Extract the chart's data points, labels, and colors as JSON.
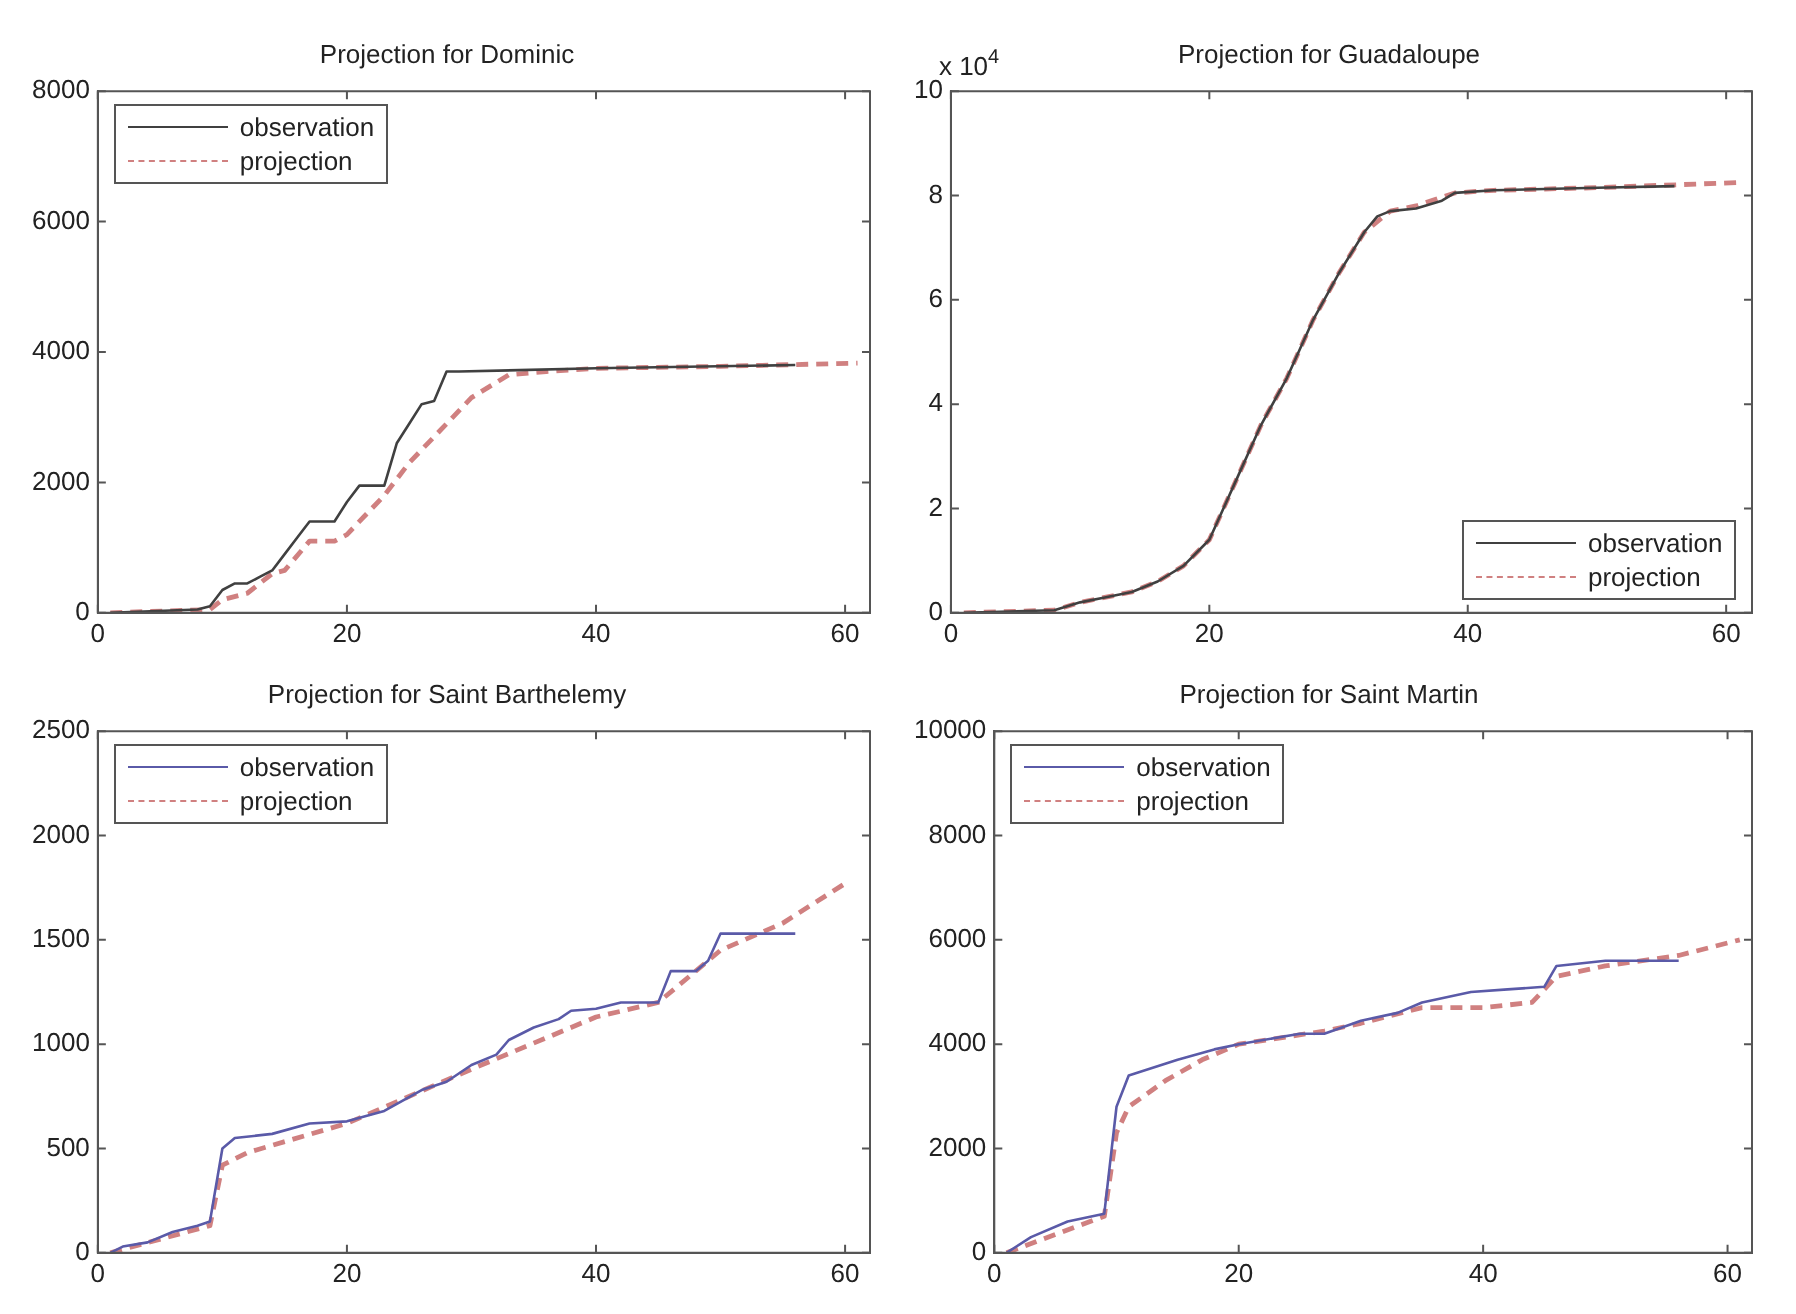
{
  "chart_data": [
    {
      "type": "line",
      "title": "Projection for Dominic",
      "xlim": [
        0,
        62
      ],
      "xticks": [
        0,
        20,
        40,
        60
      ],
      "ylim": [
        0,
        8000
      ],
      "yticks": [
        0,
        2000,
        4000,
        6000,
        8000
      ],
      "grid": false,
      "legend": "top left",
      "marker": "none",
      "series": [
        {
          "name": "observation",
          "color": "#404040",
          "line_style": "solid",
          "x": [
            1,
            8,
            9,
            10,
            11,
            12,
            13,
            14,
            15,
            16,
            17,
            18,
            19,
            20,
            21,
            22,
            23,
            24,
            25,
            26,
            27,
            28,
            29,
            40,
            56
          ],
          "values": [
            0,
            50,
            100,
            350,
            450,
            450,
            550,
            650,
            900,
            1150,
            1400,
            1400,
            1400,
            1700,
            1950,
            1950,
            1950,
            2600,
            2900,
            3200,
            3250,
            3700,
            3700,
            3750,
            3800
          ]
        },
        {
          "name": "projection",
          "color": "#d08080",
          "line_style": "dashed",
          "x": [
            1,
            9,
            10,
            12,
            14,
            15,
            17,
            19,
            20,
            22,
            23,
            25,
            28,
            30,
            33,
            36,
            40,
            50,
            61
          ],
          "values": [
            0,
            50,
            200,
            300,
            600,
            650,
            1100,
            1100,
            1200,
            1600,
            1800,
            2300,
            2900,
            3300,
            3650,
            3700,
            3750,
            3780,
            3830
          ]
        }
      ]
    },
    {
      "type": "line",
      "title": "Projection for Guadaloupe",
      "annotations": [
        "x 10$^{4}$"
      ],
      "xlim": [
        0,
        62
      ],
      "xticks": [
        0,
        20,
        40,
        60
      ],
      "ylim": [
        0,
        10
      ],
      "yticks": [
        0,
        2,
        4,
        6,
        8,
        10
      ],
      "grid": false,
      "legend": "bottom right",
      "marker": "none",
      "series": [
        {
          "name": "observation",
          "color": "#404040",
          "line_style": "solid",
          "x": [
            1,
            8,
            10,
            12,
            14,
            16,
            18,
            20,
            22,
            24,
            26,
            28,
            30,
            32,
            33,
            34,
            36,
            38,
            39,
            42,
            50,
            56
          ],
          "values": [
            0,
            0.05,
            0.2,
            0.3,
            0.4,
            0.6,
            0.9,
            1.4,
            2.5,
            3.6,
            4.5,
            5.6,
            6.5,
            7.3,
            7.6,
            7.7,
            7.75,
            7.9,
            8.05,
            8.1,
            8.15,
            8.18
          ]
        },
        {
          "name": "projection",
          "color": "#d08080",
          "line_style": "dashed",
          "x": [
            1,
            8,
            10,
            12,
            14,
            16,
            18,
            20,
            22,
            24,
            26,
            28,
            30,
            32,
            34,
            36,
            39,
            42,
            50,
            61
          ],
          "values": [
            0,
            0.05,
            0.2,
            0.3,
            0.4,
            0.6,
            0.9,
            1.4,
            2.5,
            3.6,
            4.5,
            5.6,
            6.5,
            7.3,
            7.7,
            7.8,
            8.05,
            8.1,
            8.15,
            8.25
          ]
        }
      ]
    },
    {
      "type": "line",
      "title": "Projection for Saint Barthelemy",
      "xlim": [
        0,
        62
      ],
      "xticks": [
        0,
        20,
        40,
        60
      ],
      "ylim": [
        0,
        2500
      ],
      "yticks": [
        0,
        500,
        1000,
        1500,
        2000,
        2500
      ],
      "grid": false,
      "legend": "top left",
      "marker": "none",
      "series": [
        {
          "name": "observation",
          "color": "#5a5aa8",
          "line_style": "solid",
          "x": [
            1,
            2,
            4,
            6,
            8,
            9,
            10,
            11,
            14,
            17,
            20,
            23,
            26,
            28,
            30,
            32,
            33,
            35,
            37,
            38,
            40,
            42,
            45,
            46,
            48,
            49,
            50,
            56
          ],
          "values": [
            0,
            30,
            50,
            100,
            130,
            150,
            500,
            550,
            570,
            620,
            630,
            680,
            780,
            820,
            900,
            950,
            1020,
            1080,
            1120,
            1160,
            1170,
            1200,
            1200,
            1350,
            1350,
            1400,
            1530,
            1530
          ]
        },
        {
          "name": "projection",
          "color": "#d08080",
          "line_style": "dashed",
          "x": [
            1,
            9,
            10,
            12,
            20,
            30,
            40,
            45,
            50,
            55,
            60
          ],
          "values": [
            0,
            130,
            420,
            480,
            620,
            880,
            1130,
            1200,
            1450,
            1580,
            1770
          ]
        }
      ]
    },
    {
      "type": "line",
      "title": "Projection for Saint Martin",
      "xlim": [
        0,
        62
      ],
      "xticks": [
        0,
        20,
        40,
        60
      ],
      "ylim": [
        0,
        10000
      ],
      "yticks": [
        0,
        2000,
        4000,
        6000,
        8000,
        10000
      ],
      "grid": false,
      "legend": "top left",
      "marker": "none",
      "series": [
        {
          "name": "observation",
          "color": "#5a5aa8",
          "line_style": "solid",
          "x": [
            1,
            3,
            6,
            9,
            10,
            11,
            15,
            18,
            20,
            25,
            27,
            30,
            33,
            35,
            39,
            42,
            45,
            46,
            50,
            56
          ],
          "values": [
            0,
            300,
            600,
            750,
            2800,
            3400,
            3700,
            3900,
            4000,
            4200,
            4200,
            4450,
            4600,
            4800,
            5000,
            5050,
            5100,
            5500,
            5600,
            5600
          ]
        },
        {
          "name": "projection",
          "color": "#d08080",
          "line_style": "dashed",
          "x": [
            1,
            9,
            10,
            11,
            14,
            17,
            20,
            27,
            30,
            35,
            40,
            44,
            46,
            50,
            56,
            61
          ],
          "values": [
            0,
            700,
            2300,
            2800,
            3300,
            3700,
            4000,
            4250,
            4400,
            4700,
            4700,
            4800,
            5300,
            5500,
            5700,
            6000
          ]
        }
      ]
    }
  ]
}
